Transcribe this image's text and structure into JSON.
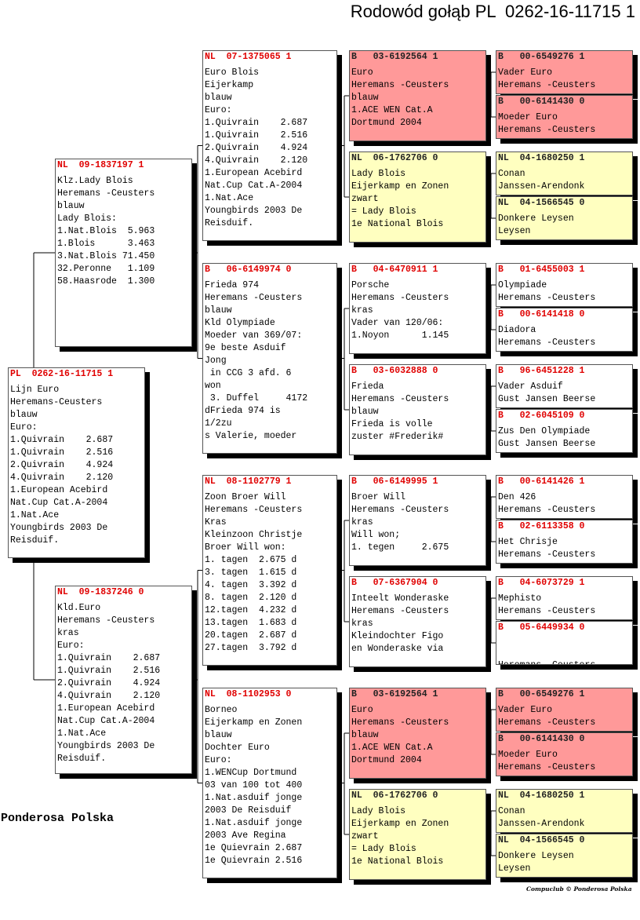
{
  "title": "Rodowód gołąb PL  0262-16-11715 1",
  "footer": "Ponderosa Polska",
  "copyright": "Compuclub © Ponderosa Polska",
  "pedigree": {
    "subject": {
      "ring": "PL  0262-16-11715 1",
      "fill": "#ffffff",
      "lines": [
        "Lijn Euro",
        "Heremans-Ceusters",
        "blauw",
        "Euro:",
        "1.Quivrain    2.687",
        "1.Quivrain    2.516",
        "2.Quivrain    4.924",
        "4.Quivrain    2.120",
        "1.European Acebird",
        "Nat.Cup Cat.A-2004",
        "1.Nat.Ace",
        "Youngbirds 2003 De",
        "Reisduif."
      ]
    },
    "generation_1": [
      {
        "ring": "NL  09-1837197 1",
        "fill": "#ffffff",
        "lines": [
          "Klz.Lady Blois",
          "Heremans -Ceusters",
          "blauw",
          "Lady Blois:",
          "1.Nat.Blois  5.963",
          "1.Blois      3.463",
          "3.Nat.Blois 71.450",
          "32.Peronne   1.109",
          "58.Haasrode  1.300"
        ]
      },
      {
        "ring": "NL  09-1837246 0",
        "fill": "#ffffff",
        "lines": [
          "Kld.Euro",
          "Heremans -Ceusters",
          "kras",
          "Euro:",
          "1.Quivrain    2.687",
          "1.Quivrain    2.516",
          "2.Quivrain    4.924",
          "4.Quivrain    2.120",
          "1.European Acebird",
          "Nat.Cup Cat.A-2004",
          "1.Nat.Ace",
          "Youngbirds 2003 De",
          "Reisduif."
        ]
      }
    ],
    "generation_2": [
      {
        "ring": "NL  07-1375065 1",
        "fill": "#ffffff",
        "lines": [
          "Euro Blois",
          "Eijerkamp",
          "blauw",
          "Euro:",
          "1.Quivrain    2.687",
          "1.Quivrain    2.516",
          "2.Quivrain    4.924",
          "4.Quivrain    2.120",
          "1.European Acebird",
          "Nat.Cup Cat.A-2004",
          "1.Nat.Ace",
          "Youngbirds 2003 De",
          "Reisduif."
        ]
      },
      {
        "ring": "B   06-6149974 0",
        "fill": "#ffffff",
        "lines": [
          "Frieda 974",
          "Heremans -Ceusters",
          "blauw",
          "Kld Olympiade",
          "Moeder van 369/07:",
          "9e beste Asduif",
          "Jong",
          " in CCG 3 afd. 6",
          "won",
          " 3. Duffel     4172",
          "dFrieda 974 is",
          "1/2zu",
          "s Valerie, moeder"
        ]
      },
      {
        "ring": "NL  08-1102779 1",
        "fill": "#ffffff",
        "lines": [
          "Zoon Broer Will",
          "Heremans -Ceusters",
          "Kras",
          "Kleinzoon Christje",
          "Broer Will won:",
          "1. tagen  2.675 d",
          "3. tagen  1.615 d",
          "4. tagen  3.392 d",
          "8. tagen  2.120 d",
          "12.tagen  4.232 d",
          "13.tagen  1.683 d",
          "20.tagen  2.687 d",
          "27.tagen  3.792 d"
        ]
      },
      {
        "ring": "NL  08-1102953 0",
        "fill": "#ffffff",
        "lines": [
          "Borneo",
          "Eijerkamp en Zonen",
          "blauw",
          "Dochter Euro",
          "Euro:",
          "1.WENCup Dortmund",
          "03 van 100 tot 400",
          "1.Nat.asduif jonge",
          "2003 De Reisduif",
          "1.Nat.asduif jonge",
          "2003 Ave Regina",
          "1e Quievrain 2.687",
          "1e Quievrain 2.516"
        ]
      }
    ],
    "generation_3": [
      {
        "ring": "B   03-6192564 1",
        "fill": "#ff9999",
        "lines": [
          "Euro",
          "Heremans -Ceusters",
          "blauw",
          "1.ACE WEN Cat.A",
          "Dortmund 2004"
        ]
      },
      {
        "ring": "NL  06-1762706 0",
        "fill": "#ffffc0",
        "lines": [
          "Lady Blois",
          "Eijerkamp en Zonen",
          "zwart",
          "= Lady Blois",
          "1e National Blois"
        ]
      },
      {
        "ring": "B   04-6470911 1",
        "fill": "#ffffff",
        "lines": [
          "Porsche",
          "Heremans -Ceusters",
          "kras",
          "Vader van 120/06:",
          "1.Noyon      1.145"
        ]
      },
      {
        "ring": "B   03-6032888 0",
        "fill": "#ffffff",
        "lines": [
          "Frieda",
          "Heremans -Ceusters",
          "blauw",
          "Frieda is volle",
          "zuster #Frederik#"
        ]
      },
      {
        "ring": "B   06-6149995 1",
        "fill": "#ffffff",
        "lines": [
          "Broer Will",
          "Heremans -Ceusters",
          "kras",
          "Will won;",
          "1. tegen     2.675"
        ]
      },
      {
        "ring": "B   07-6367904 0",
        "fill": "#ffffff",
        "lines": [
          "Inteelt Wonderaske",
          "Heremans -Ceusters",
          "kras",
          "Kleindochter Figo",
          "en Wonderaske via"
        ]
      },
      {
        "ring": "B   03-6192564 1",
        "fill": "#ff9999",
        "lines": [
          "Euro",
          "Heremans -Ceusters",
          "blauw",
          "1.ACE WEN Cat.A",
          "Dortmund 2004"
        ]
      },
      {
        "ring": "NL  06-1762706 0",
        "fill": "#ffffc0",
        "lines": [
          "Lady Blois",
          "Eijerkamp en Zonen",
          "zwart",
          "= Lady Blois",
          "1e National Blois"
        ]
      }
    ],
    "generation_4": [
      {
        "ring": "B   00-6549276 1",
        "fill": "#ff9999",
        "lines": [
          "Vader Euro",
          "Heremans -Ceusters"
        ]
      },
      {
        "ring": "B   00-6141430 0",
        "fill": "#ff9999",
        "lines": [
          "Moeder Euro",
          "Heremans -Ceusters"
        ]
      },
      {
        "ring": "NL  04-1680250 1",
        "fill": "#ffffc0",
        "lines": [
          "Conan",
          "Janssen-Arendonk"
        ]
      },
      {
        "ring": "NL  04-1566545 0",
        "fill": "#ffffc0",
        "lines": [
          "Donkere Leysen",
          "Leysen"
        ]
      },
      {
        "ring": "B   01-6455003 1",
        "fill": "#ffffff",
        "lines": [
          "Olympiade",
          "Heremans -Ceusters"
        ]
      },
      {
        "ring": "B   00-6141418 0",
        "fill": "#ffffff",
        "lines": [
          "Diadora",
          "Heremans -Ceusters"
        ]
      },
      {
        "ring": "B   96-6451228 1",
        "fill": "#ffffff",
        "lines": [
          "Vader Asduif",
          "Gust Jansen Beerse"
        ]
      },
      {
        "ring": "B   02-6045109 0",
        "fill": "#ffffff",
        "lines": [
          "Zus Den Olympiade",
          "Gust Jansen Beerse"
        ]
      },
      {
        "ring": "B   00-6141426 1",
        "fill": "#ffffff",
        "lines": [
          "Den 426",
          "Heremans -Ceusters"
        ]
      },
      {
        "ring": "B   02-6113358 0",
        "fill": "#ffffff",
        "lines": [
          "Het Chrisje",
          "Heremans -Ceusters"
        ]
      },
      {
        "ring": "B   04-6073729 1",
        "fill": "#ffffff",
        "lines": [
          "Mephisto",
          "Heremans -Ceusters"
        ]
      },
      {
        "ring": "B   05-6449934 0",
        "fill": "#ffffff",
        "lines": [
          "Heremans -Ceusters"
        ]
      },
      {
        "ring": "B   00-6549276 1",
        "fill": "#ff9999",
        "lines": [
          "Vader Euro",
          "Heremans -Ceusters"
        ]
      },
      {
        "ring": "B   00-6141430 0",
        "fill": "#ff9999",
        "lines": [
          "Moeder Euro",
          "Heremans -Ceusters"
        ]
      },
      {
        "ring": "NL  04-1680250 1",
        "fill": "#ffffc0",
        "lines": [
          "Conan",
          "Janssen-Arendonk"
        ]
      },
      {
        "ring": "NL  04-1566545 0",
        "fill": "#ffffc0",
        "lines": [
          "Donkere Leysen",
          "Leysen"
        ]
      }
    ]
  }
}
